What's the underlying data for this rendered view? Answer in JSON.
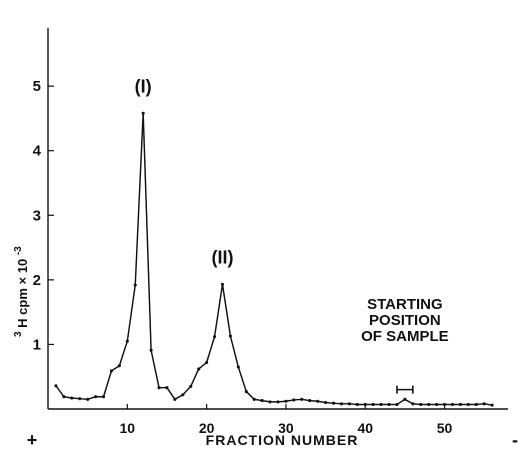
{
  "chart_data": {
    "type": "line",
    "xlabel": "FRACTION NUMBER",
    "ylabel_super": "3",
    "ylabel_main": "H cpm × 10",
    "ylabel_exp": "-3",
    "xlim": [
      0,
      58
    ],
    "ylim": [
      0,
      5.9
    ],
    "xticks": [
      10,
      20,
      30,
      40,
      50
    ],
    "yticks": [
      1,
      2,
      3,
      4,
      5
    ],
    "x_left_marker": "+",
    "x_right_marker": "-",
    "grid": false,
    "series": [
      {
        "x": [
          1,
          2,
          3,
          4,
          5,
          6,
          7,
          8,
          9,
          10,
          11,
          12,
          13,
          14,
          15,
          16,
          17,
          18,
          19,
          20,
          21,
          22,
          23,
          24,
          25,
          26,
          27,
          28,
          29,
          30,
          31,
          32,
          33,
          34,
          35,
          36,
          37,
          38,
          39,
          40,
          41,
          42,
          43,
          44,
          45,
          46,
          47,
          48,
          49,
          50,
          51,
          52,
          53,
          54,
          55,
          56
        ],
        "y": [
          0.36,
          0.19,
          0.17,
          0.16,
          0.15,
          0.19,
          0.19,
          0.59,
          0.67,
          1.05,
          1.92,
          4.58,
          0.91,
          0.33,
          0.33,
          0.15,
          0.22,
          0.35,
          0.62,
          0.72,
          1.12,
          1.93,
          1.13,
          0.65,
          0.27,
          0.15,
          0.13,
          0.11,
          0.11,
          0.12,
          0.14,
          0.15,
          0.13,
          0.12,
          0.1,
          0.09,
          0.08,
          0.08,
          0.07,
          0.07,
          0.07,
          0.07,
          0.07,
          0.07,
          0.15,
          0.08,
          0.07,
          0.07,
          0.07,
          0.07,
          0.07,
          0.07,
          0.07,
          0.07,
          0.08,
          0.06
        ]
      }
    ],
    "annotations": [
      {
        "text": "(I)",
        "x": 12,
        "y": 4.9
      },
      {
        "text": "(II)",
        "x": 22,
        "y": 2.25
      }
    ],
    "sample_label": [
      "STARTING",
      "POSITION",
      "OF SAMPLE"
    ],
    "sample_range": [
      44,
      46
    ],
    "sample_range_y": 0.3
  }
}
